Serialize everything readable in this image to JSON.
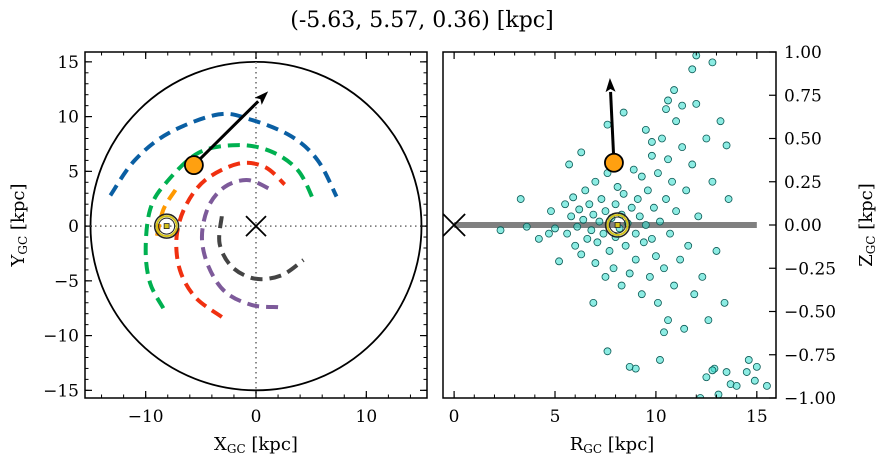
{
  "title": "(-5.63, 5.57, 0.36) [kpc]",
  "chart_data": [
    {
      "type": "line",
      "panel": "left",
      "xlabel": "X",
      "xlabel_sub": "GC",
      "xlabel_unit": " [kpc]",
      "ylabel": "Y",
      "ylabel_sub": "GC",
      "ylabel_unit": " [kpc]",
      "xlim": [
        -15.5,
        15.5
      ],
      "ylim": [
        -15.7,
        15.9
      ],
      "xticks": [
        -10,
        0,
        10
      ],
      "xtick_labels": [
        "−10",
        "0",
        "10"
      ],
      "yticks": [
        -15,
        -10,
        -5,
        0,
        5,
        10,
        15
      ],
      "ytick_labels": [
        "−15",
        "−10",
        "−5",
        "0",
        "5",
        "10",
        "15"
      ],
      "boundary_circle_radius": 15,
      "reference_lines": {
        "x": 0,
        "y": 0,
        "style": "dotted",
        "color": "#808080"
      },
      "series": [
        {
          "color": "#0a5fa3",
          "style": "dashed",
          "points": [
            [
              -13.2,
              2.8
            ],
            [
              -11.0,
              6.0
            ],
            [
              -7.9,
              8.5
            ],
            [
              -3.4,
              10.2
            ],
            [
              -0.4,
              9.7
            ],
            [
              3.2,
              8.2
            ],
            [
              5.6,
              6.0
            ],
            [
              7.3,
              2.7
            ]
          ]
        },
        {
          "color": "#00b050",
          "style": "dashed",
          "points": [
            [
              -8.4,
              -7.5
            ],
            [
              -9.6,
              -5.2
            ],
            [
              -10.0,
              -2.2
            ],
            [
              -9.6,
              1.5
            ],
            [
              -8.2,
              3.9
            ],
            [
              -5.2,
              6.7
            ],
            [
              -1.6,
              7.4
            ],
            [
              1.4,
              6.8
            ],
            [
              3.8,
              5.1
            ],
            [
              5.2,
              2.4
            ]
          ]
        },
        {
          "color": "#ff9900",
          "style": "dashed",
          "points": [
            [
              -7.3,
              3.3
            ],
            [
              -8.4,
              1.5
            ],
            [
              -9.0,
              -1.0
            ]
          ]
        },
        {
          "color": "#f03010",
          "style": "dashed",
          "points": [
            [
              -3.1,
              -8.3
            ],
            [
              -5.5,
              -6.5
            ],
            [
              -6.9,
              -4.0
            ],
            [
              -7.2,
              -1.0
            ],
            [
              -6.4,
              1.8
            ],
            [
              -4.6,
              4.2
            ],
            [
              -1.6,
              5.7
            ],
            [
              0.8,
              5.4
            ],
            [
              2.6,
              3.8
            ]
          ]
        },
        {
          "color": "#7d5a9a",
          "style": "dashed",
          "points": [
            [
              2.0,
              -7.4
            ],
            [
              -0.4,
              -7.2
            ],
            [
              -2.8,
              -6.0
            ],
            [
              -4.3,
              -3.7
            ],
            [
              -4.9,
              -1.0
            ],
            [
              -4.3,
              1.8
            ],
            [
              -2.8,
              3.6
            ],
            [
              -0.7,
              4.2
            ],
            [
              1.4,
              3.3
            ]
          ]
        },
        {
          "color": "#444444",
          "style": "dashed",
          "points": [
            [
              -3.1,
              0.9
            ],
            [
              -3.3,
              -1.6
            ],
            [
              -2.2,
              -3.7
            ],
            [
              -0.1,
              -4.8
            ],
            [
              2.3,
              -4.5
            ],
            [
              4.3,
              -3.1
            ]
          ]
        }
      ],
      "galactic_center": [
        0,
        0
      ],
      "sun": [
        -8.1,
        0
      ],
      "star": {
        "position": [
          -5.63,
          5.57
        ],
        "color": "#ffa010",
        "arrow_to": [
          1.1,
          12.3
        ]
      }
    },
    {
      "type": "scatter",
      "panel": "right",
      "xlabel": "R",
      "xlabel_sub": "GC",
      "xlabel_unit": " [kpc]",
      "ylabel": "Z",
      "ylabel_sub": "GC",
      "ylabel_unit": " [kpc]",
      "xlim": [
        -0.55,
        15.95
      ],
      "ylim": [
        -1.0,
        1.0
      ],
      "xticks": [
        0,
        5,
        10,
        15
      ],
      "xtick_labels": [
        "0",
        "5",
        "10",
        "15"
      ],
      "yticks": [
        -1.0,
        -0.75,
        -0.5,
        -0.25,
        0.0,
        0.25,
        0.5,
        0.75,
        1.0
      ],
      "ytick_labels": [
        "−1.00",
        "−0.75",
        "−0.50",
        "−0.25",
        "0.00",
        "0.25",
        "0.50",
        "0.75",
        "1.00"
      ],
      "disk_line": {
        "from": 0,
        "to": 15,
        "z": 0,
        "color": "#808080"
      },
      "point_color": "#40e0d0",
      "points": [
        [
          2.3,
          -0.03
        ],
        [
          3.3,
          0.15
        ],
        [
          3.6,
          -0.01
        ],
        [
          4.2,
          -0.08
        ],
        [
          4.7,
          -0.05
        ],
        [
          4.8,
          0.08
        ],
        [
          5.0,
          -0.02
        ],
        [
          5.2,
          -0.21
        ],
        [
          5.5,
          0.12
        ],
        [
          5.6,
          -0.05
        ],
        [
          5.8,
          0.05
        ],
        [
          5.9,
          0.16
        ],
        [
          6.0,
          -0.12
        ],
        [
          6.1,
          -0.01
        ],
        [
          6.2,
          0.09
        ],
        [
          6.3,
          -0.17
        ],
        [
          6.4,
          0.03
        ],
        [
          6.5,
          0.2
        ],
        [
          6.6,
          -0.08
        ],
        [
          6.7,
          0.12
        ],
        [
          6.8,
          -0.03
        ],
        [
          6.9,
          0.06
        ],
        [
          7.0,
          -0.22
        ],
        [
          7.0,
          0.25
        ],
        [
          7.1,
          -0.1
        ],
        [
          7.2,
          0.02
        ],
        [
          7.3,
          0.15
        ],
        [
          7.4,
          -0.05
        ],
        [
          7.5,
          -0.3
        ],
        [
          7.5,
          0.08
        ],
        [
          7.6,
          0.3
        ],
        [
          7.7,
          -0.15
        ],
        [
          7.8,
          0.04
        ],
        [
          7.9,
          -0.25
        ],
        [
          8.0,
          0.12
        ],
        [
          8.0,
          -0.07
        ],
        [
          8.1,
          0.22
        ],
        [
          8.2,
          -0.02
        ],
        [
          8.3,
          -0.35
        ],
        [
          8.3,
          0.06
        ],
        [
          8.4,
          0.18
        ],
        [
          8.5,
          -0.12
        ],
        [
          8.6,
          0.01
        ],
        [
          8.7,
          -0.28
        ],
        [
          8.8,
          0.1
        ],
        [
          8.9,
          0.32
        ],
        [
          9.0,
          -0.05
        ],
        [
          9.0,
          -0.2
        ],
        [
          9.1,
          0.15
        ],
        [
          9.2,
          0.05
        ],
        [
          9.3,
          -0.4
        ],
        [
          9.3,
          0.28
        ],
        [
          9.4,
          -0.1
        ],
        [
          9.5,
          0.0
        ],
        [
          9.6,
          0.2
        ],
        [
          9.7,
          -0.3
        ],
        [
          9.8,
          0.4
        ],
        [
          9.8,
          -0.08
        ],
        [
          9.9,
          0.1
        ],
        [
          10.0,
          -0.18
        ],
        [
          10.1,
          0.3
        ],
        [
          10.1,
          -0.45
        ],
        [
          10.2,
          0.02
        ],
        [
          10.3,
          0.5
        ],
        [
          10.4,
          -0.25
        ],
        [
          10.5,
          0.15
        ],
        [
          10.6,
          -0.55
        ],
        [
          10.6,
          0.38
        ],
        [
          10.7,
          -0.05
        ],
        [
          10.8,
          0.25
        ],
        [
          10.9,
          -0.35
        ],
        [
          11.0,
          0.6
        ],
        [
          11.0,
          0.08
        ],
        [
          11.2,
          -0.2
        ],
        [
          11.3,
          0.45
        ],
        [
          11.4,
          -0.6
        ],
        [
          11.5,
          0.2
        ],
        [
          11.6,
          -0.12
        ],
        [
          11.8,
          0.35
        ],
        [
          11.9,
          -0.4
        ],
        [
          12.0,
          0.7
        ],
        [
          12.1,
          0.05
        ],
        [
          12.3,
          -0.3
        ],
        [
          12.5,
          0.5
        ],
        [
          12.6,
          -0.55
        ],
        [
          12.8,
          0.25
        ],
        [
          13.0,
          -0.15
        ],
        [
          13.2,
          0.6
        ],
        [
          13.4,
          -0.45
        ],
        [
          13.6,
          0.15
        ],
        [
          9.5,
          0.55
        ],
        [
          8.4,
          0.65
        ],
        [
          7.6,
          0.58
        ],
        [
          10.9,
          0.78
        ],
        [
          11.8,
          0.9
        ],
        [
          9.8,
          0.48
        ],
        [
          10.5,
          0.67
        ],
        [
          6.3,
          0.42
        ],
        [
          5.7,
          0.35
        ],
        [
          6.9,
          -0.45
        ],
        [
          10.4,
          -0.62
        ],
        [
          10.2,
          -0.78
        ],
        [
          8.7,
          -0.82
        ],
        [
          9.0,
          -0.83
        ],
        [
          7.6,
          -0.73
        ],
        [
          12.9,
          -0.83
        ],
        [
          13.5,
          -0.85
        ],
        [
          13.7,
          -0.92
        ],
        [
          14.5,
          -0.85
        ],
        [
          14.9,
          -0.9
        ],
        [
          15.5,
          -0.93
        ],
        [
          12.5,
          -0.88
        ],
        [
          14.0,
          -0.93
        ],
        [
          12.2,
          -1.0
        ],
        [
          13.1,
          -0.98
        ],
        [
          14.6,
          -0.78
        ],
        [
          15.0,
          -0.82
        ],
        [
          12.8,
          -0.84
        ],
        [
          12.0,
          0.98
        ],
        [
          12.8,
          0.94
        ],
        [
          11.3,
          0.69
        ],
        [
          10.6,
          0.72
        ],
        [
          13.5,
          0.46
        ]
      ],
      "galactic_center": [
        0,
        0
      ],
      "sun": [
        8.1,
        0
      ],
      "star": {
        "position": [
          7.92,
          0.36
        ],
        "color": "#ffa010",
        "arrow_to": [
          7.72,
          0.85
        ]
      }
    }
  ]
}
